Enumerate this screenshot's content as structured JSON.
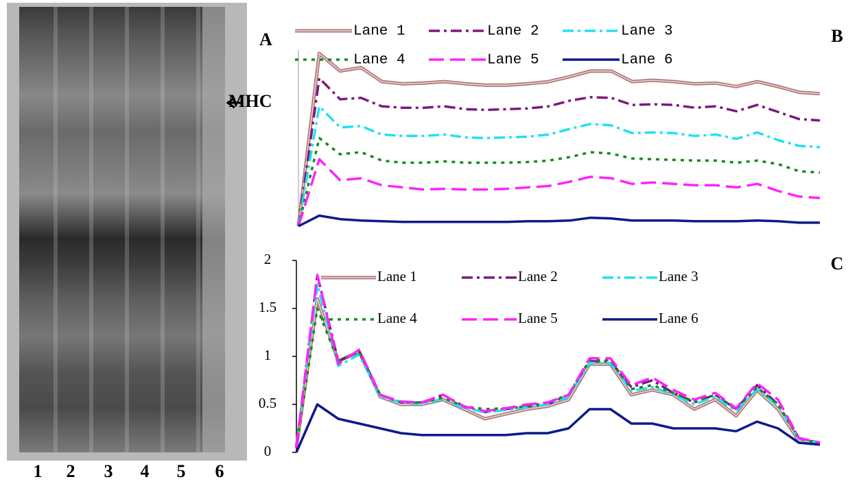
{
  "gel": {
    "lanes": [
      "1",
      "2",
      "3",
      "4",
      "5",
      "6"
    ],
    "panel_label": "A",
    "band_label": "MHC"
  },
  "chart_data": [
    {
      "type": "line",
      "panel_label": "B",
      "series": [
        {
          "name": "Lane 1",
          "color": "#b07878",
          "dash": "double",
          "values": [
            0,
            2.45,
            2.2,
            2.25,
            2.05,
            2.02,
            2.03,
            2.05,
            2.02,
            2.0,
            2.0,
            2.02,
            2.05,
            2.12,
            2.2,
            2.2,
            2.05,
            2.07,
            2.05,
            2.02,
            2.03,
            1.98,
            2.05,
            1.98,
            1.9,
            1.88
          ]
        },
        {
          "name": "Lane 2",
          "color": "#7b1a7b",
          "dash": "dashdot",
          "values": [
            0,
            2.1,
            1.8,
            1.82,
            1.7,
            1.68,
            1.68,
            1.7,
            1.66,
            1.65,
            1.66,
            1.67,
            1.7,
            1.78,
            1.83,
            1.82,
            1.72,
            1.73,
            1.72,
            1.68,
            1.7,
            1.63,
            1.72,
            1.62,
            1.52,
            1.5
          ]
        },
        {
          "name": "Lane 3",
          "color": "#22e0f0",
          "dash": "dashdot",
          "values": [
            0,
            1.7,
            1.4,
            1.42,
            1.3,
            1.28,
            1.28,
            1.3,
            1.26,
            1.25,
            1.26,
            1.27,
            1.3,
            1.38,
            1.45,
            1.43,
            1.32,
            1.33,
            1.32,
            1.28,
            1.3,
            1.24,
            1.33,
            1.22,
            1.14,
            1.12
          ]
        },
        {
          "name": "Lane 4",
          "color": "#1a8a1a",
          "dash": "dot",
          "values": [
            0,
            1.25,
            1.02,
            1.05,
            0.93,
            0.9,
            0.9,
            0.92,
            0.9,
            0.9,
            0.9,
            0.91,
            0.93,
            0.98,
            1.05,
            1.03,
            0.96,
            0.95,
            0.94,
            0.93,
            0.93,
            0.9,
            0.93,
            0.88,
            0.78,
            0.76
          ]
        },
        {
          "name": "Lane 5",
          "color": "#ff22ff",
          "dash": "longdash",
          "values": [
            0,
            0.95,
            0.65,
            0.68,
            0.58,
            0.55,
            0.52,
            0.53,
            0.52,
            0.52,
            0.53,
            0.55,
            0.57,
            0.63,
            0.7,
            0.68,
            0.6,
            0.62,
            0.6,
            0.58,
            0.58,
            0.55,
            0.6,
            0.5,
            0.42,
            0.4
          ]
        },
        {
          "name": "Lane 6",
          "color": "#0a1a8a",
          "dash": "solid",
          "values": [
            0,
            0.15,
            0.1,
            0.08,
            0.07,
            0.06,
            0.06,
            0.06,
            0.06,
            0.06,
            0.06,
            0.07,
            0.07,
            0.08,
            0.12,
            0.11,
            0.08,
            0.08,
            0.08,
            0.07,
            0.07,
            0.07,
            0.08,
            0.07,
            0.05,
            0.05
          ]
        }
      ]
    },
    {
      "type": "line",
      "panel_label": "C",
      "ylim": [
        0,
        2
      ],
      "yticks": [
        0,
        0.5,
        1,
        1.5,
        2
      ],
      "series": [
        {
          "name": "Lane 1",
          "color": "#b07878",
          "dash": "double",
          "values": [
            0.05,
            1.6,
            0.95,
            1.05,
            0.58,
            0.5,
            0.5,
            0.55,
            0.45,
            0.35,
            0.4,
            0.45,
            0.48,
            0.55,
            0.92,
            0.92,
            0.6,
            0.65,
            0.6,
            0.45,
            0.55,
            0.38,
            0.65,
            0.45,
            0.12,
            0.1
          ]
        },
        {
          "name": "Lane 2",
          "color": "#7b1a7b",
          "dash": "dashdot",
          "values": [
            0.05,
            1.85,
            0.95,
            1.05,
            0.6,
            0.52,
            0.52,
            0.6,
            0.48,
            0.42,
            0.45,
            0.48,
            0.5,
            0.6,
            0.95,
            0.95,
            0.68,
            0.75,
            0.62,
            0.52,
            0.6,
            0.45,
            0.7,
            0.5,
            0.15,
            0.1
          ]
        },
        {
          "name": "Lane 3",
          "color": "#22e0f0",
          "dash": "dashdot",
          "values": [
            0.05,
            1.75,
            0.9,
            1.02,
            0.58,
            0.52,
            0.5,
            0.56,
            0.46,
            0.42,
            0.44,
            0.47,
            0.5,
            0.58,
            0.93,
            0.93,
            0.64,
            0.68,
            0.6,
            0.5,
            0.58,
            0.43,
            0.66,
            0.48,
            0.14,
            0.1
          ]
        },
        {
          "name": "Lane 4",
          "color": "#1a8a1a",
          "dash": "dot",
          "values": [
            0.05,
            1.5,
            0.95,
            1.05,
            0.6,
            0.52,
            0.52,
            0.57,
            0.48,
            0.45,
            0.46,
            0.48,
            0.52,
            0.6,
            0.96,
            0.96,
            0.66,
            0.7,
            0.62,
            0.53,
            0.6,
            0.45,
            0.68,
            0.5,
            0.14,
            0.1
          ]
        },
        {
          "name": "Lane 5",
          "color": "#ff22ff",
          "dash": "longdash",
          "values": [
            0.05,
            1.85,
            0.92,
            1.07,
            0.6,
            0.53,
            0.52,
            0.6,
            0.48,
            0.43,
            0.46,
            0.5,
            0.52,
            0.6,
            0.98,
            0.98,
            0.7,
            0.78,
            0.65,
            0.55,
            0.62,
            0.46,
            0.72,
            0.55,
            0.15,
            0.1
          ]
        },
        {
          "name": "Lane 6",
          "color": "#0a1a8a",
          "dash": "solid",
          "values": [
            0,
            0.5,
            0.35,
            0.3,
            0.25,
            0.2,
            0.18,
            0.18,
            0.18,
            0.18,
            0.18,
            0.2,
            0.2,
            0.25,
            0.45,
            0.45,
            0.3,
            0.3,
            0.25,
            0.25,
            0.25,
            0.22,
            0.32,
            0.25,
            0.1,
            0.08
          ]
        }
      ]
    }
  ]
}
